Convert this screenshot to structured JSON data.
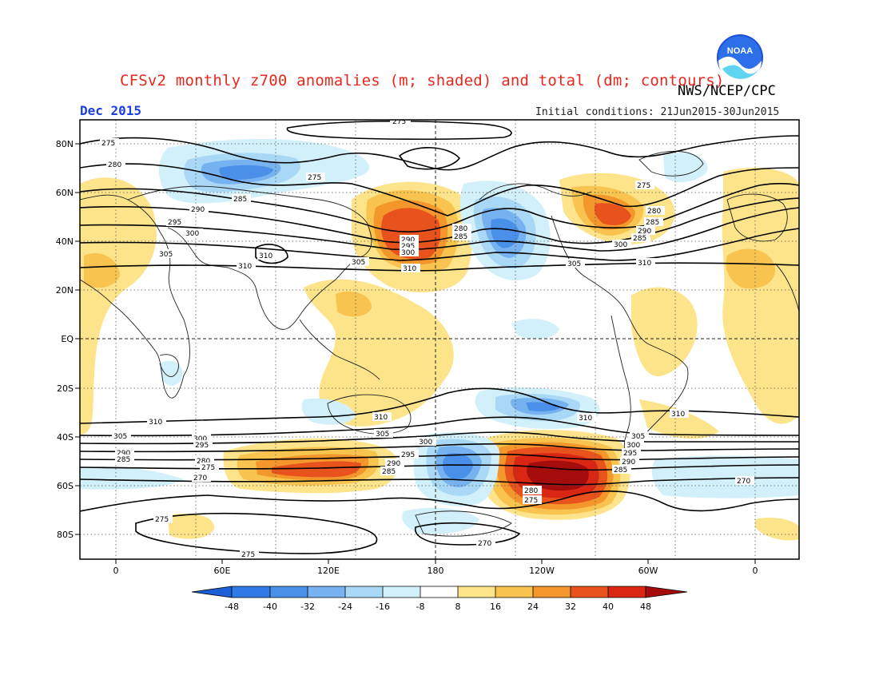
{
  "header": {
    "title": "CFSv2 monthly z700 anomalies (m; shaded) and total (dm; contours)",
    "agency": "NWS/NCEP/CPC",
    "month": "Dec 2015",
    "initial_conditions": "Initial conditions: 21Jun2015-30Jun2015",
    "logo_text": "NOAA"
  },
  "axes": {
    "lat_labels": [
      "80N",
      "60N",
      "40N",
      "20N",
      "EQ",
      "20S",
      "40S",
      "60S",
      "80S"
    ],
    "lon_labels": [
      "0",
      "60E",
      "120E",
      "180",
      "120W",
      "60W",
      "0"
    ]
  },
  "colorbar": {
    "labels": [
      "-48",
      "-40",
      "-32",
      "-24",
      "-16",
      "-8",
      "8",
      "16",
      "24",
      "32",
      "40",
      "48"
    ],
    "colors": [
      "#1d5fd6",
      "#2f7ae6",
      "#4a90e8",
      "#76b2ef",
      "#a9d8f6",
      "#d2f0fa",
      "#ffffff",
      "#fde38a",
      "#f8c44f",
      "#f3962c",
      "#e8531d",
      "#d92714",
      "#a50d0d"
    ]
  },
  "contour_labels": [
    {
      "text": "275"
    },
    {
      "text": "280"
    },
    {
      "text": "285"
    },
    {
      "text": "290"
    },
    {
      "text": "295"
    },
    {
      "text": "300"
    },
    {
      "text": "305"
    },
    {
      "text": "310"
    },
    {
      "text": "270"
    }
  ],
  "anomaly_legend_units": "m",
  "contour_units": "dm"
}
